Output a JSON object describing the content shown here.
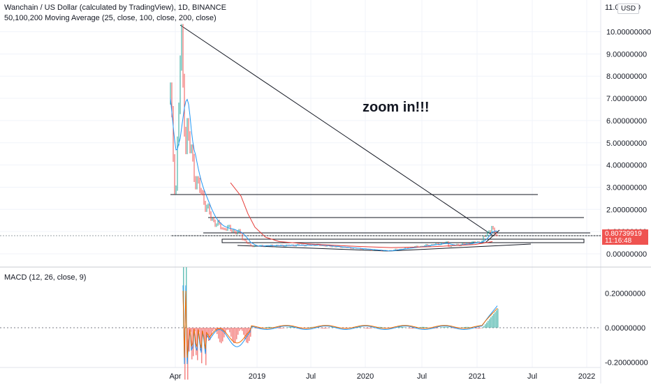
{
  "header": {
    "title": "Wanchain / US Dollar (calculated by TradingView), 1D, BINANCE",
    "ma_label": "50,100,200 Moving Average (25, close, 100, close, 200, close)",
    "macd_label": "MACD (12, 26, close, 9)",
    "currency_badge": "USD"
  },
  "annotation": "zoom in!!!",
  "price_axis": {
    "top_partial": "11.0",
    "top_partial_tail": "000",
    "ticks": [
      "10.00000000",
      "9.00000000",
      "8.00000000",
      "7.00000000",
      "6.00000000",
      "5.00000000",
      "4.00000000",
      "3.00000000",
      "2.00000000",
      "1.00000000",
      "0.00000000"
    ]
  },
  "macd_axis": {
    "ticks": [
      "0.20000000",
      "0.00000000",
      "-0.20000000"
    ]
  },
  "last_price": {
    "value": "0.80739919",
    "countdown": "11:16:48"
  },
  "time_axis": [
    "Apr",
    "2019",
    "Jul",
    "2020",
    "Jul",
    "2021",
    "Jul",
    "2022"
  ],
  "colors": {
    "up": "#26a69a",
    "down": "#ef5350",
    "line": "#131722",
    "ma_blue": "#2196f3",
    "ma_orange": "#f57c00",
    "ma_red": "#e53935",
    "grid": "#f0f3fa",
    "macd_hist_up": "#26a69a"
  }
}
